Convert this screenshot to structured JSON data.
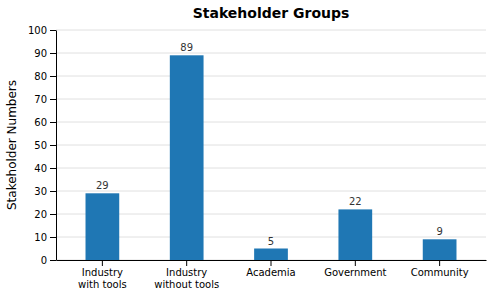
{
  "chart_data": {
    "type": "bar",
    "title": "Stakeholder Groups",
    "ylabel": "Stakeholder Numbers",
    "categories": [
      "Industry\nwith tools",
      "Industry\nwithout tools",
      "Academia",
      "Government",
      "Community"
    ],
    "values": [
      29,
      89,
      5,
      22,
      9
    ],
    "ylim": [
      0,
      100
    ],
    "yticks": [
      0,
      10,
      20,
      30,
      40,
      50,
      60,
      70,
      80,
      90,
      100
    ],
    "grid": true,
    "data_labels": true
  }
}
